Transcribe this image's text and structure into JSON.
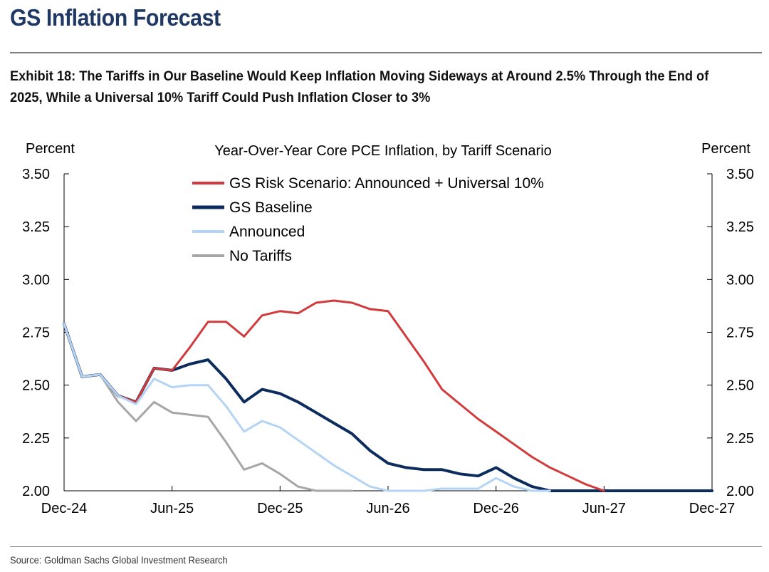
{
  "header": {
    "title": "GS Inflation Forecast",
    "exhibit": "Exhibit 18: The Tariffs in Our Baseline Would Keep Inflation Moving Sideways at Around 2.5% Through the End of 2025, While a Universal 10% Tariff Could Push Inflation Closer to 3%"
  },
  "footer": {
    "source": "Source: Goldman Sachs Global Investment Research"
  },
  "chart_data": {
    "type": "line",
    "title": "Year-Over-Year Core PCE Inflation, by Tariff Scenario",
    "ylabel_left": "Percent",
    "ylabel_right": "Percent",
    "ylim": [
      2.0,
      3.5
    ],
    "yticks": [
      "3.50",
      "3.25",
      "3.00",
      "2.75",
      "2.50",
      "2.25",
      "2.00"
    ],
    "ytick_values": [
      3.5,
      3.25,
      3.0,
      2.75,
      2.5,
      2.25,
      2.0
    ],
    "xlim": [
      0,
      36
    ],
    "xtick_labels": [
      "Dec-24",
      "Jun-25",
      "Dec-25",
      "Jun-26",
      "Dec-26",
      "Jun-27",
      "Dec-27"
    ],
    "xtick_positions": [
      0,
      6,
      12,
      18,
      24,
      30,
      36
    ],
    "legend_position": "top-center",
    "series": [
      {
        "name": "GS Risk Scenario: Announced + Universal 10%",
        "color": "#d13b3b",
        "width": 3,
        "x": [
          0,
          1,
          2,
          3,
          4,
          5,
          6,
          7,
          8,
          9,
          10,
          11,
          12,
          13,
          14,
          15,
          16,
          17,
          18,
          19,
          20,
          21,
          22,
          23,
          24,
          25,
          26,
          27,
          28,
          29,
          30
        ],
        "values": [
          2.79,
          2.54,
          2.55,
          2.45,
          2.42,
          2.58,
          2.57,
          2.68,
          2.8,
          2.8,
          2.73,
          2.83,
          2.85,
          2.84,
          2.89,
          2.9,
          2.89,
          2.86,
          2.85,
          2.73,
          2.61,
          2.48,
          2.41,
          2.34,
          2.28,
          2.22,
          2.16,
          2.11,
          2.07,
          2.03,
          2.0
        ]
      },
      {
        "name": "GS Baseline",
        "color": "#0c2c5e",
        "width": 4,
        "x": [
          0,
          1,
          2,
          3,
          4,
          5,
          6,
          7,
          8,
          9,
          10,
          11,
          12,
          13,
          14,
          15,
          16,
          17,
          18,
          19,
          20,
          21,
          22,
          23,
          24,
          25,
          26,
          27,
          28,
          29,
          30,
          31,
          32,
          33,
          34,
          35,
          36
        ],
        "values": [
          2.79,
          2.54,
          2.55,
          2.45,
          2.42,
          2.58,
          2.57,
          2.6,
          2.62,
          2.53,
          2.42,
          2.48,
          2.46,
          2.42,
          2.37,
          2.32,
          2.27,
          2.19,
          2.13,
          2.11,
          2.1,
          2.1,
          2.08,
          2.07,
          2.11,
          2.06,
          2.02,
          2.0,
          2.0,
          2.0,
          2.0,
          2.0,
          2.0,
          2.0,
          2.0,
          2.0,
          2.0
        ]
      },
      {
        "name": "Announced",
        "color": "#b3d4f5",
        "width": 3,
        "x": [
          0,
          1,
          2,
          3,
          4,
          5,
          6,
          7,
          8,
          9,
          10,
          11,
          12,
          13,
          14,
          15,
          16,
          17,
          18,
          19,
          20,
          21,
          22,
          23,
          24,
          25,
          26,
          27
        ],
        "values": [
          2.79,
          2.54,
          2.55,
          2.45,
          2.41,
          2.53,
          2.49,
          2.5,
          2.5,
          2.4,
          2.28,
          2.33,
          2.3,
          2.24,
          2.18,
          2.12,
          2.07,
          2.02,
          2.0,
          2.0,
          2.0,
          2.01,
          2.01,
          2.01,
          2.06,
          2.02,
          2.0,
          2.0
        ]
      },
      {
        "name": "No Tariffs",
        "color": "#a6a6a6",
        "width": 3,
        "x": [
          0,
          1,
          2,
          3,
          4,
          5,
          6,
          7,
          8,
          9,
          10,
          11,
          12,
          13,
          14,
          15,
          16
        ],
        "values": [
          2.79,
          2.54,
          2.55,
          2.42,
          2.33,
          2.42,
          2.37,
          2.36,
          2.35,
          2.23,
          2.1,
          2.13,
          2.08,
          2.02,
          2.0,
          2.0,
          2.0
        ]
      }
    ]
  }
}
